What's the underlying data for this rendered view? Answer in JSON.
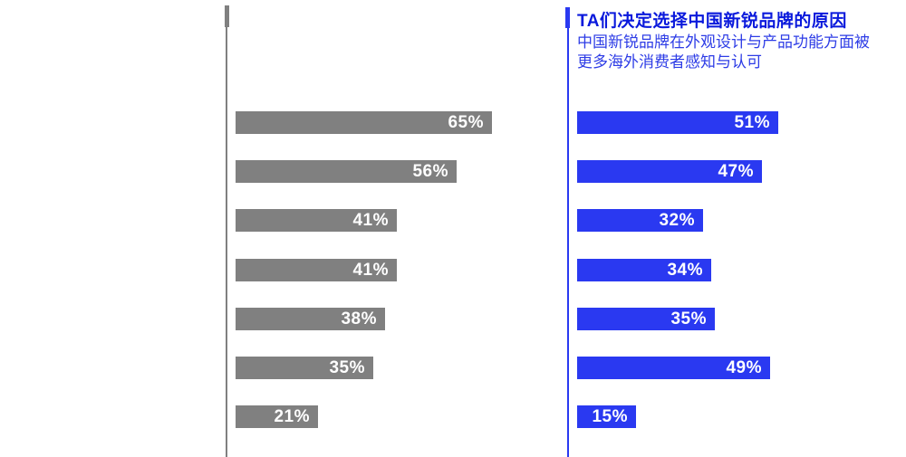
{
  "page": {
    "background": "#ffffff"
  },
  "header": {
    "title": "TA们决定选择中国新锐品牌的原因",
    "subtitle_line1": "中国新锐品牌在外观设计与产品功能方面被",
    "subtitle_line2": "更多海外消费者感知与认可",
    "title_color": "#0a19dc",
    "subtitle_color": "#2d3ce6"
  },
  "chart_data": [
    {
      "type": "bar",
      "orientation": "horizontal",
      "name": "left-gray-series",
      "values": [
        65,
        56,
        41,
        41,
        38,
        35,
        21
      ],
      "labels": [
        "65%",
        "56%",
        "41%",
        "41%",
        "38%",
        "35%",
        "21%"
      ],
      "unit": "%",
      "bar_color": "#808080",
      "value_label_color": "#ffffff",
      "axis_color": "#808080",
      "legend_position": "none",
      "grid": false
    },
    {
      "type": "bar",
      "orientation": "horizontal",
      "name": "right-blue-series",
      "title": "TA们决定选择中国新锐品牌的原因",
      "subtitle": "中国新锐品牌在外观设计与产品功能方面被更多海外消费者感知与认可",
      "values": [
        51,
        47,
        32,
        34,
        35,
        49,
        15
      ],
      "labels": [
        "51%",
        "47%",
        "32%",
        "34%",
        "35%",
        "49%",
        "15%"
      ],
      "unit": "%",
      "bar_color": "#2a39f1",
      "value_label_color": "#ffffff",
      "axis_color": "#2a39f1",
      "legend_position": "none",
      "grid": false
    }
  ]
}
